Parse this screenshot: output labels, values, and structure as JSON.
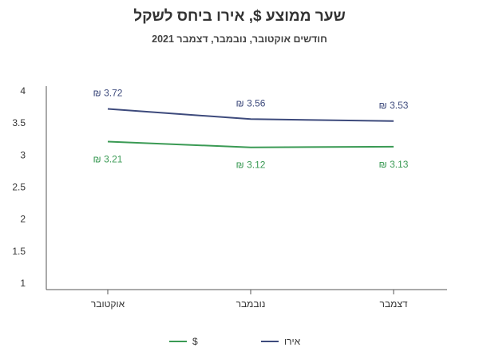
{
  "chart_data": {
    "type": "line",
    "title": "שער ממוצע $, אירו ביחס לשקל",
    "subtitle": "חודשים אוקטובר, נובמבר, דצמבר 2021",
    "categories": [
      "אוקטובר",
      "נובמבר",
      "דצמבר"
    ],
    "ylim": [
      1,
      4
    ],
    "yticks": [
      "1",
      "1.5",
      "2",
      "2.5",
      "3",
      "3.5",
      "4"
    ],
    "grid": false,
    "legend_position": "bottom",
    "series": [
      {
        "name": "אירו",
        "color": "#3d4a7c",
        "values": [
          3.72,
          3.56,
          3.53
        ],
        "labels": [
          "₪ 3.72",
          "₪ 3.56",
          "₪ 3.53"
        ]
      },
      {
        "name": "$",
        "color": "#3a9a54",
        "values": [
          3.21,
          3.12,
          3.13
        ],
        "labels": [
          "₪ 3.21",
          "₪ 3.12",
          "₪ 3.13"
        ]
      }
    ]
  }
}
